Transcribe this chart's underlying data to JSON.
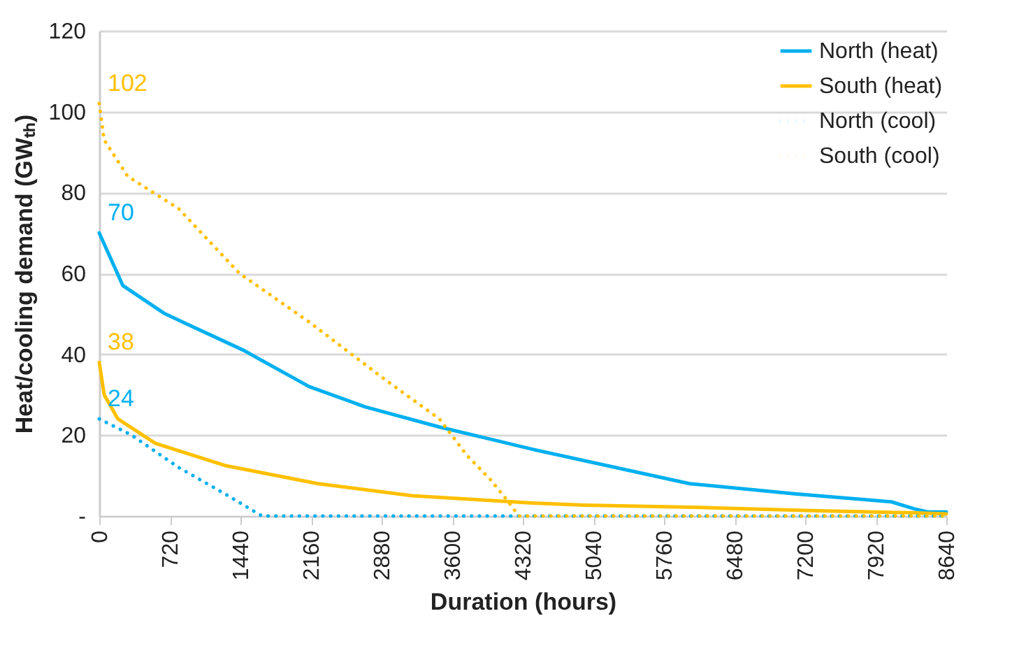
{
  "chart_data": {
    "type": "line",
    "xlabel": "Duration (hours)",
    "ylabel": "Heat/cooling demand (GWₜₕ)",
    "xlim": [
      0,
      8640
    ],
    "xticks": [
      0,
      720,
      1440,
      2160,
      2880,
      3600,
      4320,
      5040,
      5760,
      6480,
      7200,
      7920,
      8640
    ],
    "ylim": [
      0,
      120
    ],
    "yticks": [
      {
        "value": 0,
        "label": "-"
      },
      20,
      40,
      60,
      80,
      100,
      120
    ],
    "grid": "y",
    "legend": "top right",
    "series": [
      {
        "name": "North (heat)",
        "color": "#00b0f0",
        "line_style": "solid",
        "x": [
          0,
          240,
          670,
          1470,
          2140,
          2710,
          3470,
          3990,
          4420,
          6020,
          7090,
          8080,
          8310,
          8450,
          8640
        ],
        "values": [
          70,
          57,
          50,
          41,
          32,
          27,
          22,
          19,
          16.5,
          8,
          5.5,
          3.5,
          1.8,
          1,
          1
        ],
        "value_labels": [
          "70",
          null,
          null,
          null,
          null,
          null,
          null,
          null,
          null,
          null,
          null,
          null,
          null,
          null,
          null
        ]
      },
      {
        "name": "South (heat)",
        "color": "#ffc000",
        "line_style": "solid",
        "x": [
          0,
          50,
          190,
          570,
          1280,
          2230,
          3190,
          4420,
          4950,
          6130,
          7320,
          8270,
          8640
        ],
        "values": [
          38,
          30,
          24,
          18,
          12.5,
          8,
          5,
          3.2,
          2.7,
          2.1,
          1.3,
          0.8,
          0.5
        ],
        "value_labels": [
          "38",
          null,
          null,
          null,
          null,
          null,
          null,
          null,
          null,
          null,
          null,
          null,
          null
        ]
      },
      {
        "name": "North (cool)",
        "color": "#00b0f0",
        "line_style": "dotted",
        "x": [
          0,
          330,
          810,
          1280,
          1660,
          8640
        ],
        "values": [
          24,
          20,
          12,
          5.5,
          0,
          0
        ],
        "value_labels": [
          "24",
          null,
          null,
          null,
          null,
          null
        ]
      },
      {
        "name": "South (cool)",
        "color": "#ffc000",
        "line_style": "dotted",
        "x": [
          0,
          50,
          290,
          810,
          1430,
          2140,
          2900,
          3470,
          3750,
          3990,
          4140,
          4280,
          8640
        ],
        "values": [
          102,
          93,
          84,
          76,
          60,
          48,
          34,
          24,
          15,
          9,
          4.5,
          0,
          0
        ],
        "value_labels": [
          "102",
          null,
          null,
          null,
          null,
          null,
          null,
          null,
          null,
          null,
          null,
          null,
          null
        ]
      }
    ]
  }
}
